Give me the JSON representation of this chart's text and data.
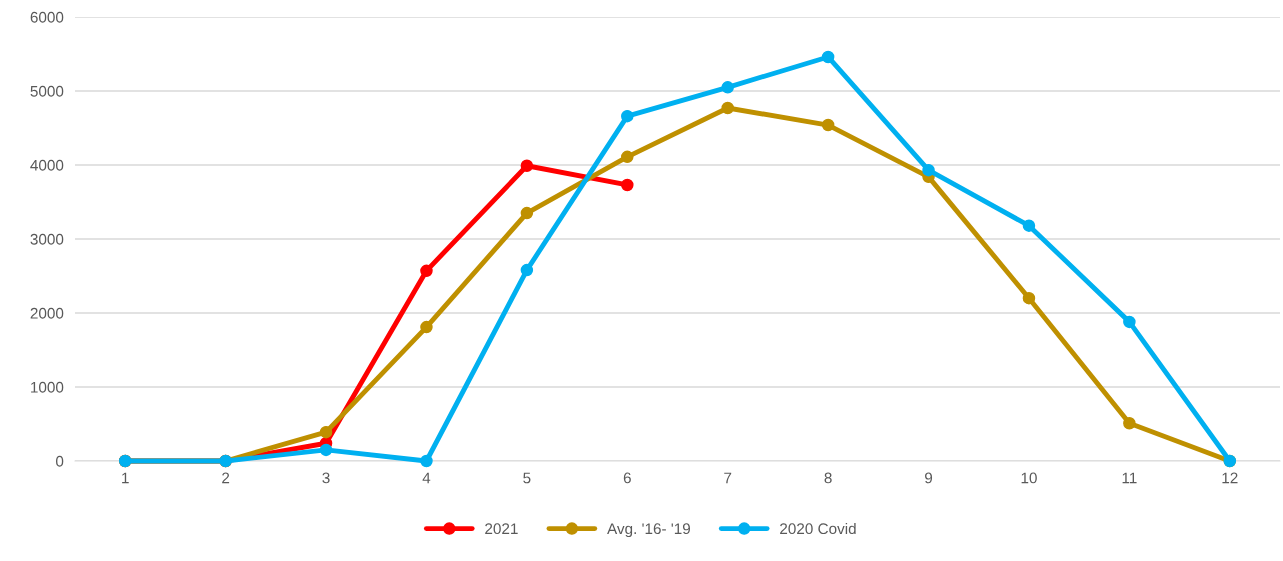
{
  "chart_data": {
    "type": "line",
    "categories": [
      "1",
      "2",
      "3",
      "4",
      "5",
      "6",
      "7",
      "8",
      "9",
      "10",
      "11",
      "12"
    ],
    "series": [
      {
        "name": "2021",
        "color": "#ff0000",
        "values": [
          0,
          0,
          240,
          2570,
          3990,
          3730,
          null,
          null,
          null,
          null,
          null,
          null
        ]
      },
      {
        "name": "Avg. '16- '19",
        "color": "#bf9000",
        "values": [
          0,
          0,
          390,
          1810,
          3350,
          4110,
          4770,
          4540,
          3840,
          2200,
          510,
          0
        ]
      },
      {
        "name": "2020 Covid",
        "color": "#00b0f0",
        "values": [
          0,
          0,
          150,
          0,
          2580,
          4660,
          5050,
          5460,
          3930,
          3180,
          1880,
          0
        ]
      }
    ],
    "ylim": [
      0,
      6000
    ],
    "yticks": [
      0,
      1000,
      2000,
      3000,
      4000,
      5000,
      6000
    ],
    "grid": "y",
    "legend": "bottom",
    "marker": "circle",
    "line_style": "solid"
  }
}
